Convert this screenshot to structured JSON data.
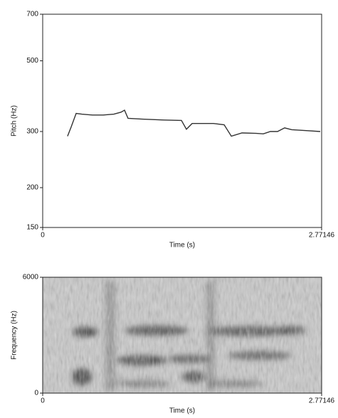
{
  "chart_data": [
    {
      "type": "line",
      "xlabel": "Time (s)",
      "ylabel": "Pitch (Hz)",
      "log_y": true,
      "xlim": [
        0,
        2.77146
      ],
      "xticks": [
        0,
        2.77146
      ],
      "ylim": [
        150,
        700
      ],
      "yticks": [
        150,
        200,
        300,
        500,
        700
      ],
      "color": "#333333",
      "x": [
        0.247,
        0.283,
        0.332,
        0.389,
        0.495,
        0.601,
        0.707,
        0.778,
        0.813,
        0.848,
        0.99,
        1.202,
        1.379,
        1.428,
        1.485,
        1.697,
        1.803,
        1.874,
        1.98,
        2.121,
        2.192,
        2.262,
        2.333,
        2.404,
        2.474,
        2.616,
        2.757
      ],
      "values": [
        290,
        310,
        342,
        340,
        338,
        338,
        340,
        345,
        350,
        330,
        328,
        326,
        325,
        305,
        318,
        318,
        315,
        290,
        297,
        296,
        295,
        300,
        300,
        308,
        304,
        302,
        300
      ]
    },
    {
      "type": "spectrogram",
      "xlabel": "Time (s)",
      "ylabel": "Frequency (Hz)",
      "xlim": [
        0,
        2.77146
      ],
      "xticks": [
        0,
        2.77146
      ],
      "ylim": [
        0,
        6000
      ],
      "yticks": [
        0,
        6000
      ]
    }
  ]
}
